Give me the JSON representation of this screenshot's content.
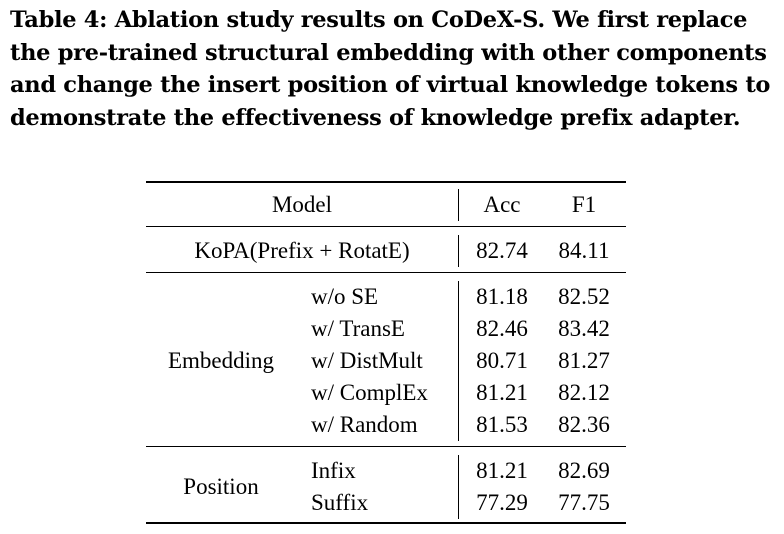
{
  "caption": {
    "lines": [
      "Table 4: Ablation study results on CoDeX-S. We first replace",
      "the pre-trained structural embedding with other components",
      "and change the insert position of virtual knowledge tokens to",
      "demonstrate the effectiveness of knowledge prefix adapter."
    ]
  },
  "table": {
    "headers": {
      "model": "Model",
      "acc": "Acc",
      "f1": "F1"
    },
    "main_row": {
      "model": "KoPA(Prefix + RotatE)",
      "acc": "82.74",
      "f1": "84.11"
    },
    "groups": [
      {
        "name": "Embedding",
        "rows": [
          {
            "variant": "w/o SE",
            "acc": "81.18",
            "f1": "82.52"
          },
          {
            "variant": "w/ TransE",
            "acc": "82.46",
            "f1": "83.42"
          },
          {
            "variant": "w/ DistMult",
            "acc": "80.71",
            "f1": "81.27"
          },
          {
            "variant": "w/ ComplEx",
            "acc": "81.21",
            "f1": "82.12"
          },
          {
            "variant": "w/ Random",
            "acc": "81.53",
            "f1": "82.36"
          }
        ]
      },
      {
        "name": "Position",
        "rows": [
          {
            "variant": "Infix",
            "acc": "81.21",
            "f1": "82.69"
          },
          {
            "variant": "Suffix",
            "acc": "77.29",
            "f1": "77.75"
          }
        ]
      }
    ]
  }
}
